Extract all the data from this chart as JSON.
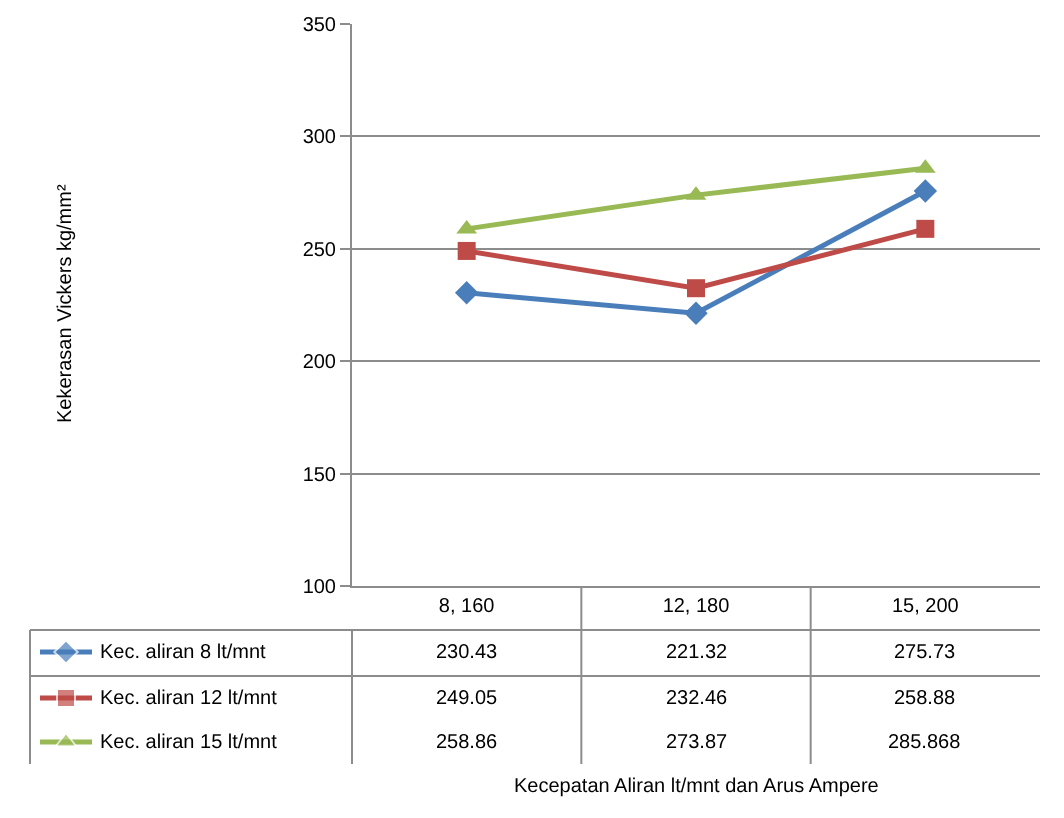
{
  "chart_data": {
    "type": "line",
    "annotations": [
      "Kecepatan Aliran lt/mnt dan Arus Ampere",
      "Kekerasan Vickers kg/mm²"
    ],
    "categories": [
      "8, 160",
      "12, 180",
      "15, 200"
    ],
    "series": [
      {
        "name": "Kec. aliran 8 lt/mnt",
        "color": "#4a7ebb",
        "marker": "diamond",
        "values": [
          230.43,
          221.32,
          275.73
        ]
      },
      {
        "name": "Kec. aliran 12 lt/mnt",
        "color": "#be4b48",
        "marker": "square",
        "values": [
          249.05,
          232.46,
          258.88
        ]
      },
      {
        "name": "Kec. aliran 15 lt/mnt",
        "color": "#98b954",
        "marker": "triangle",
        "values": [
          258.86,
          273.87,
          285.868
        ]
      }
    ],
    "ylim": [
      100,
      350
    ],
    "yticks": [
      100,
      150,
      200,
      250,
      300,
      350
    ],
    "grid": "y",
    "data_labels": true,
    "legend": "bottom"
  }
}
